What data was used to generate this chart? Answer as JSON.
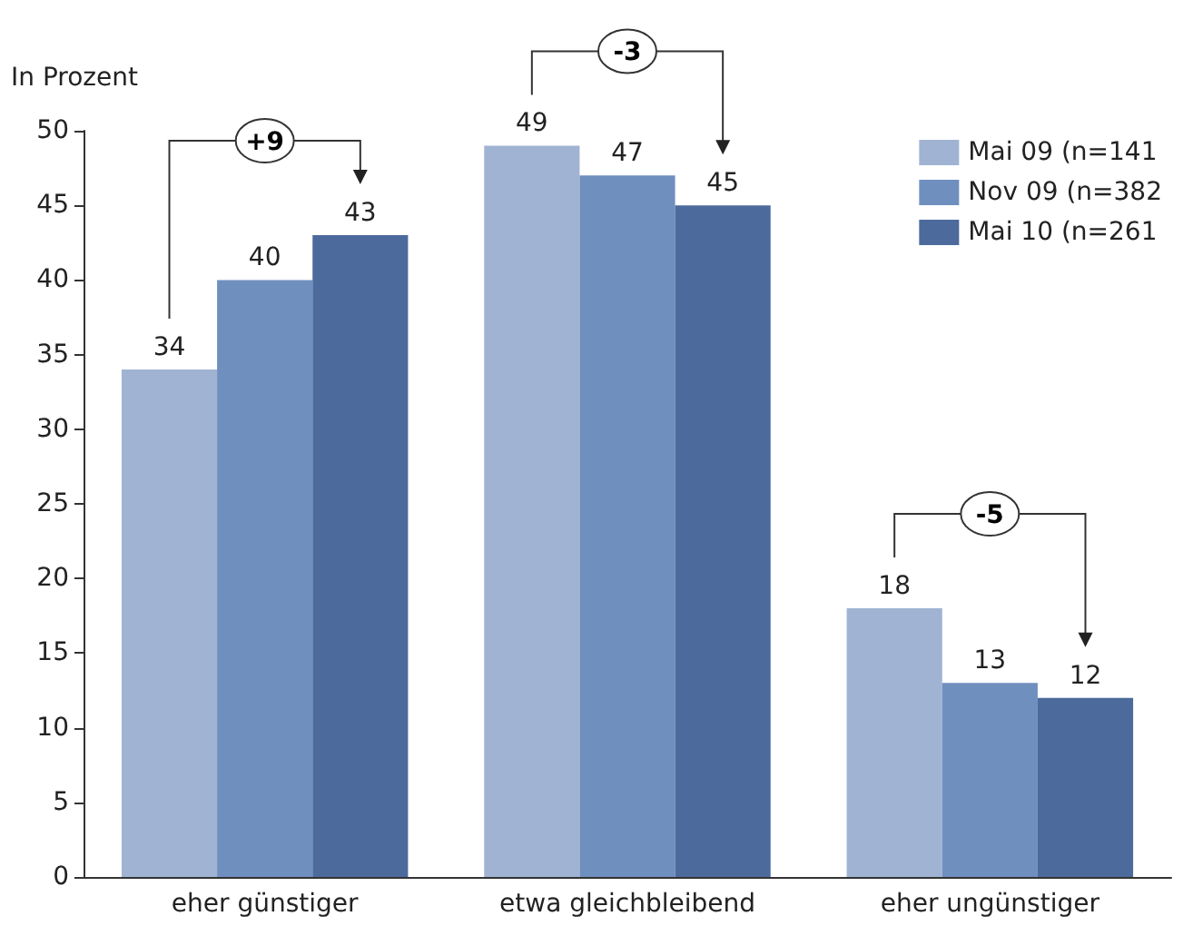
{
  "chart_data": {
    "type": "bar",
    "ylabel": "In Prozent",
    "categories": [
      "eher günstiger",
      "etwa gleichbleibend",
      "eher ungünstiger"
    ],
    "series": [
      {
        "name": "Mai 09 (n=141",
        "color": "#a0b3d3",
        "values": [
          34,
          49,
          18
        ]
      },
      {
        "name": "Nov 09 (n=382",
        "color": "#6f8fbf",
        "values": [
          40,
          47,
          13
        ]
      },
      {
        "name": "Mai 10 (n=261",
        "color": "#4c6a9c",
        "values": [
          43,
          45,
          12
        ]
      }
    ],
    "ylim": [
      0,
      50
    ],
    "yticks": [
      0,
      5,
      10,
      15,
      20,
      25,
      30,
      35,
      40,
      45,
      50
    ],
    "data_labels": true,
    "grid": false,
    "legend": "top right",
    "annotations": [
      "+9",
      "-3",
      "-5"
    ]
  }
}
